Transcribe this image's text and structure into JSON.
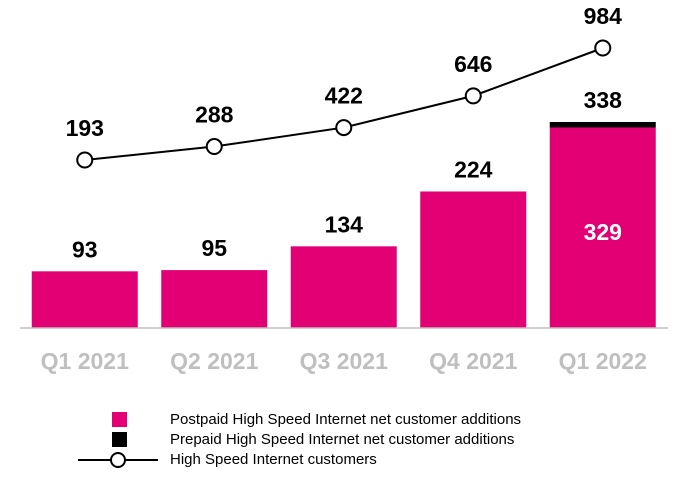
{
  "chart_data": {
    "type": "bar",
    "categories": [
      "Q1 2021",
      "Q2 2021",
      "Q3 2021",
      "Q4 2021",
      "Q1 2022"
    ],
    "bar_labels": [
      "93",
      "95",
      "134",
      "224",
      "338"
    ],
    "series": [
      {
        "name": "Postpaid High Speed Internet net customer additions",
        "type": "bar",
        "stack": "additions",
        "values": [
          93,
          95,
          134,
          224,
          329
        ],
        "color": "#E20074"
      },
      {
        "name": "Prepaid High Speed Internet net customer additions",
        "type": "bar",
        "stack": "additions",
        "values": [
          0,
          0,
          0,
          0,
          9
        ],
        "color": "#000000"
      },
      {
        "name": "High Speed Internet customers",
        "type": "line",
        "values": [
          193,
          288,
          422,
          646,
          984
        ],
        "color": "#000000",
        "marker": "open-circle"
      }
    ],
    "inner_label": {
      "category": "Q1 2022",
      "text": "329",
      "color": "#ffffff"
    },
    "legend_placement": "bottom",
    "grid": false
  }
}
